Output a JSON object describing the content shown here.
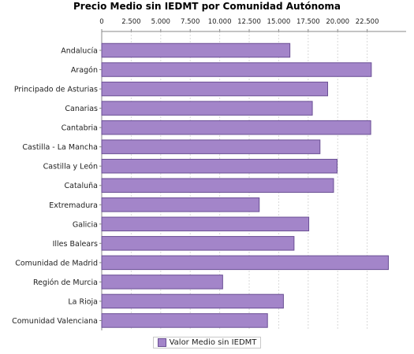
{
  "chart_data": {
    "type": "bar",
    "orientation": "horizontal",
    "title": "Precio Medio sin IEDMT por Comunidad Autónoma",
    "categories": [
      "Andalucía",
      "Aragón",
      "Principado de Asturias",
      "Canarias",
      "Cantabria",
      "Castilla - La Mancha",
      "Castilla y León",
      "Cataluña",
      "Extremadura",
      "Galicia",
      "Illes Balears",
      "Comunidad de Madrid",
      "Región de Murcia",
      "La Rioja",
      "Comunidad Valenciana"
    ],
    "series": [
      {
        "name": "Valor Medio sin IEDMT",
        "values": [
          15950,
          22850,
          19150,
          17850,
          22800,
          18500,
          19950,
          19650,
          13350,
          17550,
          16300,
          24300,
          10250,
          15400,
          14050
        ]
      }
    ],
    "xlim": [
      0,
      25800
    ],
    "xticks": [
      "0",
      "2.500",
      "5.000",
      "7.500",
      "10.000",
      "12.500",
      "15.000",
      "17.500",
      "20.000",
      "22.500"
    ],
    "xtick_values": [
      0,
      2500,
      5000,
      7500,
      10000,
      12500,
      15000,
      17500,
      20000,
      22500
    ],
    "xaxis_position": "top",
    "grid": true,
    "legend_position": "bottom-center",
    "colors": {
      "bar": "#a385c9",
      "bar_edge": "#6a4f94",
      "grid": "#d8d8d8",
      "axis": "#888888"
    }
  }
}
